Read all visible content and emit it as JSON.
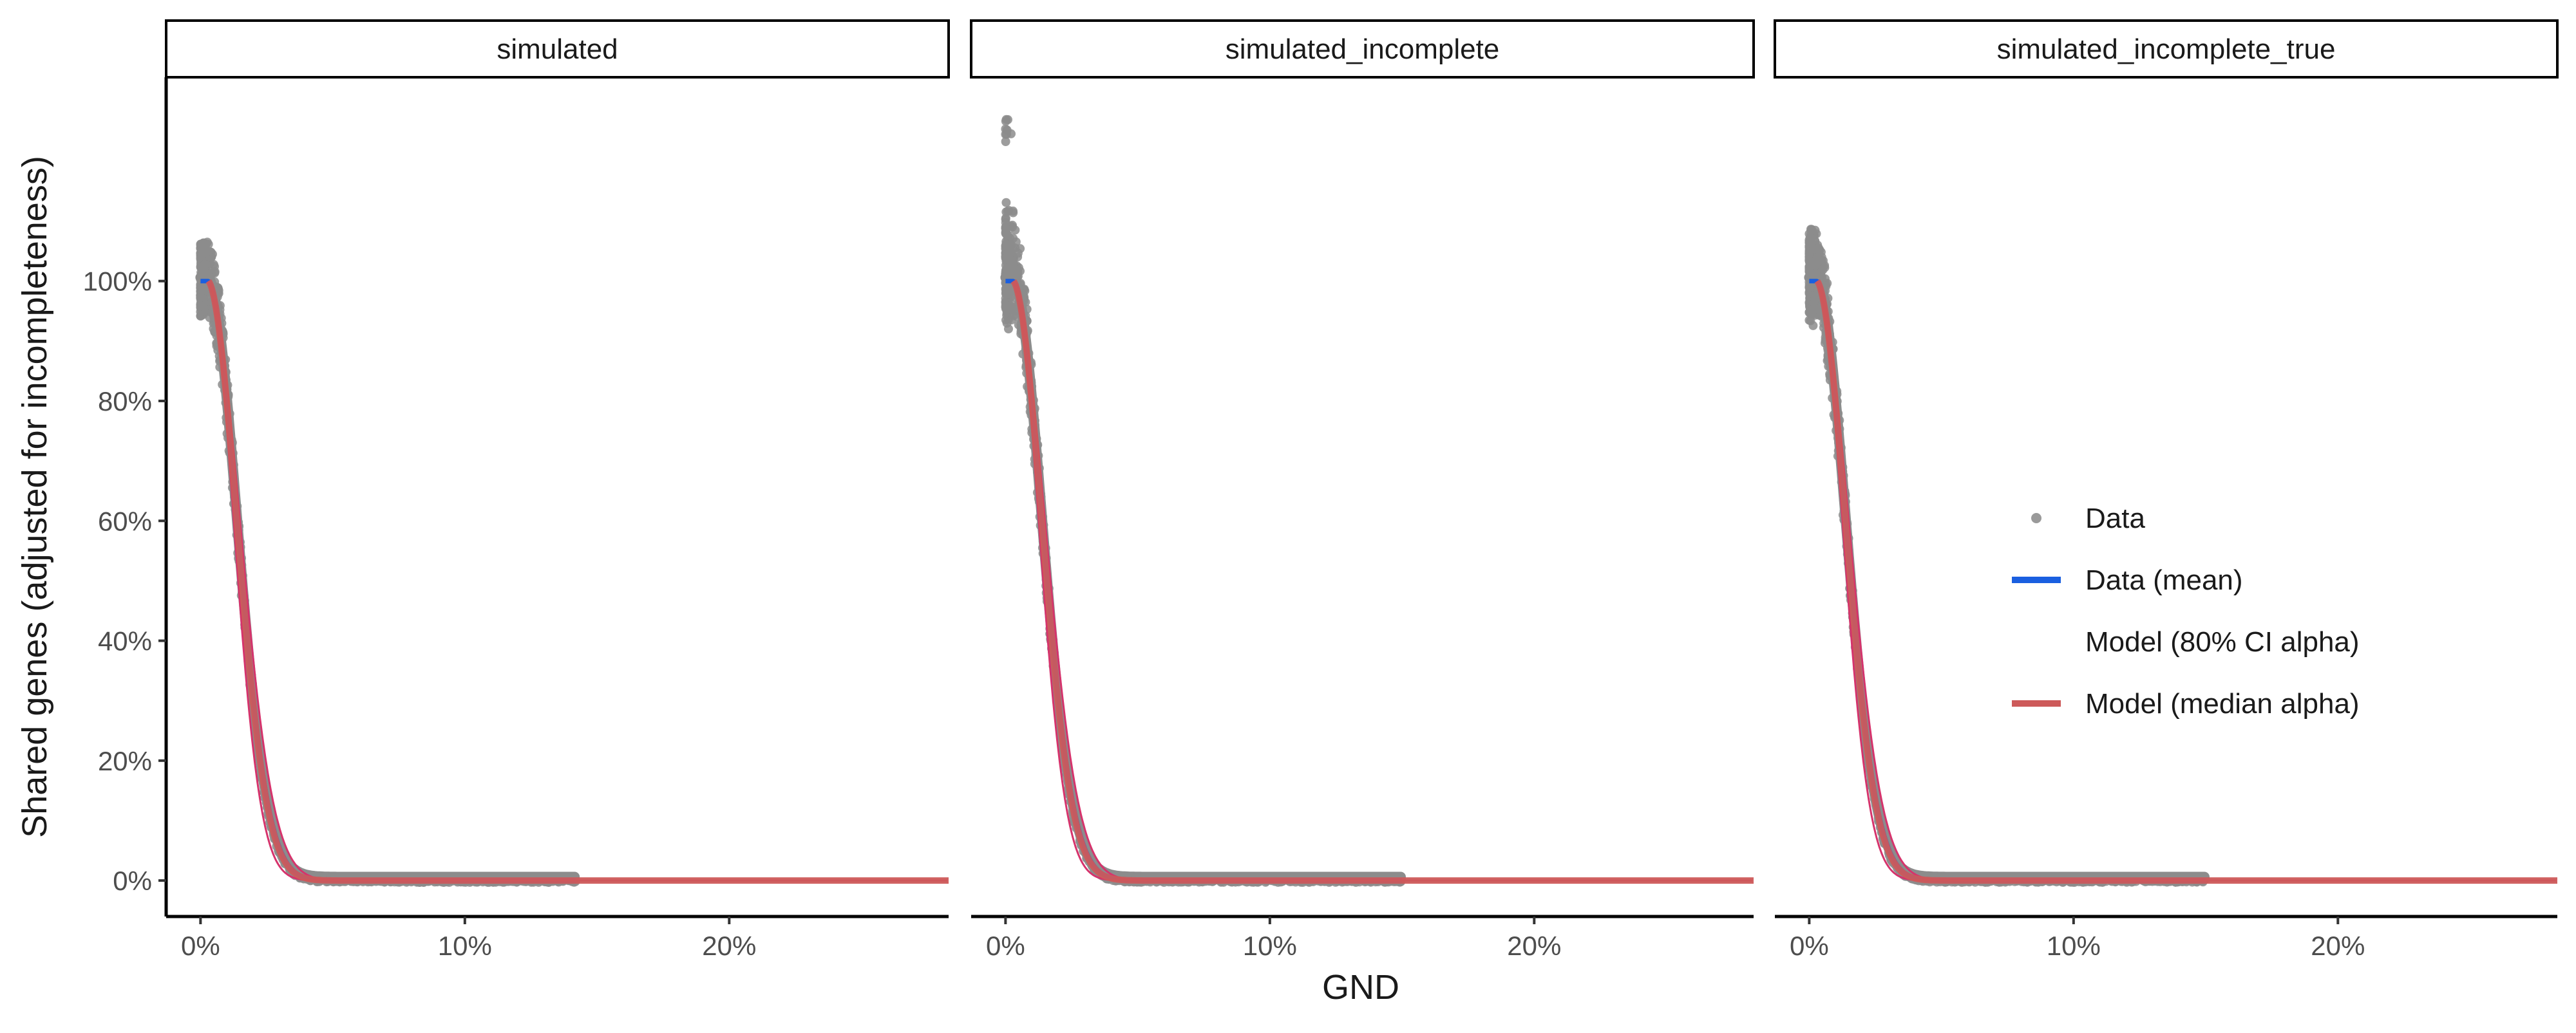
{
  "chart_data": {
    "type": "line",
    "xlabel": "GND",
    "ylabel": "Shared genes (adjusted for incompleteness)",
    "x_ticks": [
      "0%",
      "10%",
      "20%"
    ],
    "x_tick_values": [
      0,
      10,
      20
    ],
    "y_ticks": [
      "0%",
      "20%",
      "40%",
      "60%",
      "80%",
      "100%"
    ],
    "y_tick_values": [
      0,
      20,
      40,
      60,
      80,
      100
    ],
    "xlim": [
      -1.3,
      28.3
    ],
    "ylim": [
      -6,
      134
    ],
    "grid": false,
    "legend_position": "right",
    "legend": [
      {
        "label": "Data",
        "key": "point",
        "color": "#9a9a9a"
      },
      {
        "label": "Data (mean)",
        "key": "line",
        "color": "#1a5fe0"
      },
      {
        "label": "Model (80% CI alpha)",
        "key": "none",
        "color": "#d6336c"
      },
      {
        "label": "Model (median alpha)",
        "key": "line",
        "color": "#cd5a5a"
      }
    ],
    "model_median_curve": {
      "x": [
        0.3,
        28.3
      ],
      "x0": 0.3,
      "plateau": 1.0,
      "decay_rate": 0.72
    },
    "panels": [
      {
        "name": "simulated",
        "data_x_max": 14.2,
        "y_at_origin": 100,
        "y_max": 100,
        "spread": 1.2
      },
      {
        "name": "simulated_incomplete",
        "data_x_max": 15.0,
        "y_at_origin": 100,
        "y_max": 127,
        "spread": 12
      },
      {
        "name": "simulated_incomplete_true",
        "data_x_max": 15.0,
        "y_at_origin": 100,
        "y_max": 105,
        "spread": 5
      }
    ]
  }
}
